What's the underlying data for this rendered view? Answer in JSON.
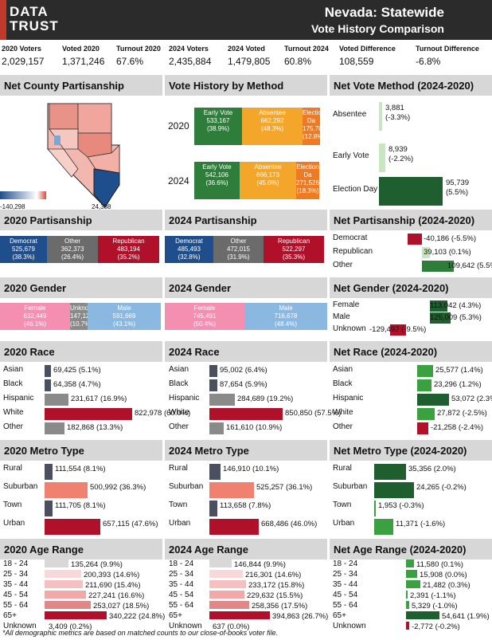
{
  "header": {
    "logo_line1": "DATA",
    "logo_line2": "TRUST",
    "title": "Nevada: Statewide",
    "subtitle": "Vote History Comparison"
  },
  "stats": [
    {
      "label": "2020 Voters",
      "value": "2,029,157"
    },
    {
      "label": "Voted 2020",
      "value": "1,371,246"
    },
    {
      "label": "Turnout 2020",
      "value": "67.6%"
    },
    {
      "label": "2024 Voters",
      "value": "2,435,884"
    },
    {
      "label": "2024 Voted",
      "value": "1,479,805"
    },
    {
      "label": "Turnout 2024",
      "value": "60.8%"
    },
    {
      "label": "Voted Difference",
      "value": "108,559"
    },
    {
      "label": "Turnout Difference",
      "value": "-6.8%"
    }
  ],
  "sections": {
    "net_county": "Net County Partisanship",
    "vote_method": "Vote History by Method",
    "net_method": "Net Vote Method (2024-2020)",
    "p2020": "2020 Partisanship",
    "p2024": "2024 Partisanship",
    "net_part": "Net Partisanship (2024-2020)",
    "g2020": "2020 Gender",
    "g2024": "2024 Gender",
    "net_gender": "Net Gender (2024-2020)",
    "r2020": "2020 Race",
    "r2024": "2024 Race",
    "net_race": "Net Race (2024-2020)",
    "m2020": "2020 Metro Type",
    "m2024": "2024 Metro Type",
    "net_metro": "Net Metro Type (2024-2020)",
    "a2020": "2020 Age Range",
    "a2024": "2024 Age Range",
    "net_age": "Net Age Range (2024-2020)"
  },
  "map": {
    "scale_min": "-140,298",
    "scale_max": "24,388"
  },
  "method": {
    "y2020": "2020",
    "y2024": "2024",
    "r2020": [
      {
        "l": "Early Vote",
        "n": "533,167",
        "p": "(38.9%)",
        "c": "#2e7d3a"
      },
      {
        "l": "Absentee",
        "n": "662,292",
        "p": "(48.3%)",
        "c": "#f4a62a"
      },
      {
        "l": "Election Da",
        "n": "175,787",
        "p": "(12.8%)",
        "c": "#ee7a22"
      }
    ],
    "r2024": [
      {
        "l": "Early Vote",
        "n": "542,106",
        "p": "(36.6%)",
        "c": "#2e7d3a"
      },
      {
        "l": "Absentee",
        "n": "666,173",
        "p": "(45.0%)",
        "c": "#f4a62a"
      },
      {
        "l": "Election Da",
        "n": "271,526",
        "p": "(18.3%)",
        "c": "#ee7a22"
      }
    ]
  },
  "net_method": [
    {
      "l": "Absentee",
      "v": "3,881",
      "p": "(-3.3%)"
    },
    {
      "l": "Early Vote",
      "v": "8,939",
      "p": "(-2.2%)"
    },
    {
      "l": "Election Day",
      "v": "95,739",
      "p": "(5.5%)"
    }
  ],
  "part2020": [
    {
      "l": "Democrat",
      "n": "525,679",
      "p": "(38.3%)",
      "c": "#1f4e8c"
    },
    {
      "l": "Other",
      "n": "362,373",
      "p": "(26.4%)",
      "c": "#6b6b6b"
    },
    {
      "l": "Republican",
      "n": "483,194",
      "p": "(35.2%)",
      "c": "#b0102a"
    }
  ],
  "part2024": [
    {
      "l": "Democrat",
      "n": "485,493",
      "p": "(32.8%)",
      "c": "#1f4e8c"
    },
    {
      "l": "Other",
      "n": "472,015",
      "p": "(31.9%)",
      "c": "#6b6b6b"
    },
    {
      "l": "Republican",
      "n": "522,297",
      "p": "(35.3%)",
      "c": "#b0102a"
    }
  ],
  "net_part": [
    {
      "l": "Democrat",
      "t": "-40,186 (-5.5%)"
    },
    {
      "l": "Republican",
      "t": "39,103 (0.1%)"
    },
    {
      "l": "Other",
      "t": "109,642 (5.5%)"
    }
  ],
  "gen2020": [
    {
      "l": "Female",
      "n": "632,449",
      "p": "(46.1%)",
      "c": "#f48fb1"
    },
    {
      "l": "Unknown",
      "n": "147,128",
      "p": "(10.7%)",
      "c": "#8a8a8a"
    },
    {
      "l": "Male",
      "n": "591,669",
      "p": "(43.1%)",
      "c": "#8ab8e0"
    }
  ],
  "gen2024": [
    {
      "l": "Female",
      "n": "745,491",
      "p": "(50.4%)",
      "c": "#f48fb1"
    },
    {
      "l": "Male",
      "n": "716,678",
      "p": "(48.4%)",
      "c": "#8ab8e0"
    }
  ],
  "net_gender": [
    {
      "l": "Female",
      "t": "113,042 (4.3%)"
    },
    {
      "l": "Male",
      "t": "125,009 (5.3%)"
    },
    {
      "l": "Unknown",
      "t": "-129,492 (-9.5%)"
    }
  ],
  "race2020": [
    {
      "l": "Asian",
      "t": "69,425 (5.1%)"
    },
    {
      "l": "Black",
      "t": "64,358 (4.7%)"
    },
    {
      "l": "Hispanic",
      "t": "231,617 (16.9%)"
    },
    {
      "l": "White",
      "t": "822,978 (60.0%)"
    },
    {
      "l": "Other",
      "t": "182,868 (13.3%)"
    }
  ],
  "race2024": [
    {
      "l": "Asian",
      "t": "95,002 (6.4%)"
    },
    {
      "l": "Black",
      "t": "87,654 (5.9%)"
    },
    {
      "l": "Hispanic",
      "t": "284,689 (19.2%)"
    },
    {
      "l": "White",
      "t": "850,850 (57.5%)"
    },
    {
      "l": "Other",
      "t": "161,610 (10.9%)"
    }
  ],
  "net_race": [
    {
      "l": "Asian",
      "t": "25,577 (1.4%)"
    },
    {
      "l": "Black",
      "t": "23,296 (1.2%)"
    },
    {
      "l": "Hispanic",
      "t": "53,072 (2.3%)"
    },
    {
      "l": "White",
      "t": "27,872 (-2.5%)"
    },
    {
      "l": "Other",
      "t": "-21,258 (-2.4%)"
    }
  ],
  "metro2020": [
    {
      "l": "Rural",
      "t": "111,554 (8.1%)"
    },
    {
      "l": "Suburban",
      "t": "500,992 (36.3%)"
    },
    {
      "l": "Town",
      "t": "111,705 (8.1%)"
    },
    {
      "l": "Urban",
      "t": "657,115 (47.6%)"
    }
  ],
  "metro2024": [
    {
      "l": "Rural",
      "t": "146,910 (10.1%)"
    },
    {
      "l": "Suburban",
      "t": "525,257 (36.1%)"
    },
    {
      "l": "Town",
      "t": "113,658 (7.8%)"
    },
    {
      "l": "Urban",
      "t": "668,486 (46.0%)"
    }
  ],
  "net_metro": [
    {
      "l": "Rural",
      "t": "35,356 (2.0%)"
    },
    {
      "l": "Suburban",
      "t": "24,265 (-0.2%)"
    },
    {
      "l": "Town",
      "t": "1,953 (-0.3%)"
    },
    {
      "l": "Urban",
      "t": "11,371 (-1.6%)"
    }
  ],
  "age2020": [
    {
      "l": "18 - 24",
      "t": "135,264 (9.9%)"
    },
    {
      "l": "25 - 34",
      "t": "200,393 (14.6%)"
    },
    {
      "l": "35 - 44",
      "t": "211,690 (15.4%)"
    },
    {
      "l": "45 - 54",
      "t": "227,241 (16.6%)"
    },
    {
      "l": "55 - 64",
      "t": "253,027 (18.5%)"
    },
    {
      "l": "65+",
      "t": "340,222 (24.8%)"
    },
    {
      "l": "Unknown",
      "t": "3,409 (0.2%)"
    }
  ],
  "age2024": [
    {
      "l": "18 - 24",
      "t": "146,844 (9.9%)"
    },
    {
      "l": "25 - 34",
      "t": "216,301 (14.6%)"
    },
    {
      "l": "35 - 44",
      "t": "233,172 (15.8%)"
    },
    {
      "l": "45 - 54",
      "t": "229,632 (15.5%)"
    },
    {
      "l": "55 - 64",
      "t": "258,356 (17.5%)"
    },
    {
      "l": "65+",
      "t": "394,863 (26.7%)"
    },
    {
      "l": "Unknown",
      "t": "637 (0.0%)"
    }
  ],
  "net_age": [
    {
      "l": "18 - 24",
      "t": "11,580 (0.1%)"
    },
    {
      "l": "25 - 34",
      "t": "15,908 (0.0%)"
    },
    {
      "l": "35 - 44",
      "t": "21,482 (0.3%)"
    },
    {
      "l": "45 - 54",
      "t": "2,391 (-1.1%)"
    },
    {
      "l": "55 - 64",
      "t": "5,329 (-1.0%)"
    },
    {
      "l": "65+",
      "t": "54,641 (1.9%)"
    },
    {
      "l": "Unknown",
      "t": "-2,772 (-0.2%)"
    }
  ],
  "footnote": "*All demographic metrics are based on matched counts to our close-of-books voter file."
}
